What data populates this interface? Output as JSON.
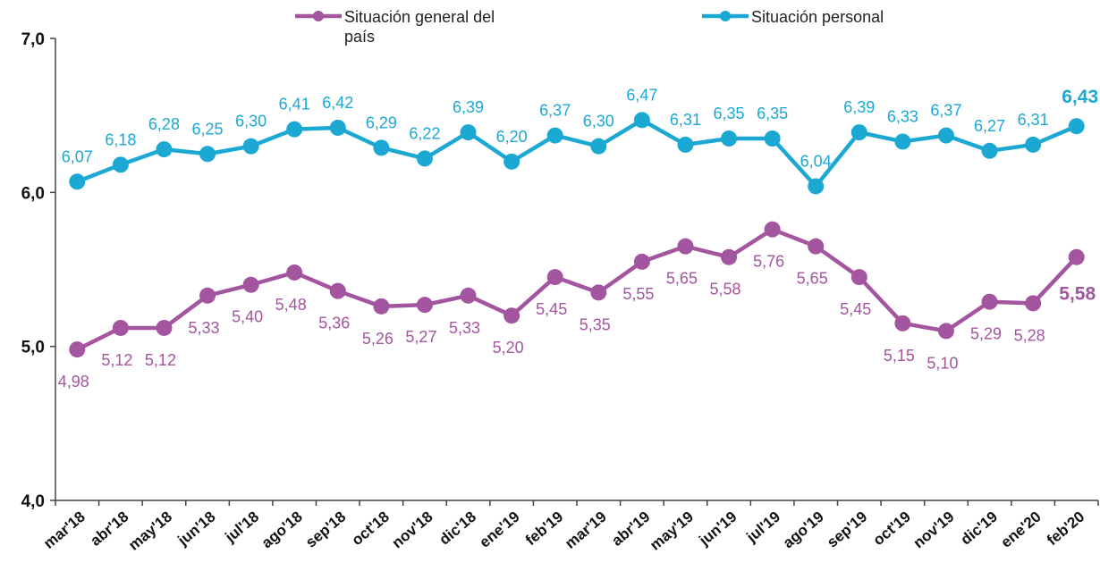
{
  "chart_data": {
    "type": "line",
    "categories": [
      "mar'18",
      "abr'18",
      "may'18",
      "jun'18",
      "jul'18",
      "ago'18",
      "sep'18",
      "oct'18",
      "nov'18",
      "dic'18",
      "ene'19",
      "feb'19",
      "mar'19",
      "abr'19",
      "may'19",
      "jun'19",
      "jul'19",
      "ago'19",
      "sep'19",
      "oct'19",
      "nov'19",
      "dic'19",
      "ene'20",
      "feb'20"
    ],
    "series": [
      {
        "name": "Situación general del país",
        "color": "#a3559f",
        "values": [
          4.98,
          5.12,
          5.12,
          5.33,
          5.4,
          5.48,
          5.36,
          5.26,
          5.27,
          5.33,
          5.2,
          5.45,
          5.35,
          5.55,
          5.65,
          5.58,
          5.76,
          5.65,
          5.45,
          5.15,
          5.1,
          5.29,
          5.28,
          5.58
        ],
        "value_labels": [
          "4,98",
          "5,12",
          "5,12",
          "5,33",
          "5,40",
          "5,48",
          "5,36",
          "5,26",
          "5,27",
          "5,33",
          "5,20",
          "5,45",
          "5,35",
          "5,55",
          "5,65",
          "5,58",
          "5,76",
          "5,65",
          "5,45",
          "5,15",
          "5,10",
          "5,29",
          "5,28",
          "5,58"
        ]
      },
      {
        "name": "Situación personal",
        "color": "#1ba8d3",
        "values": [
          6.07,
          6.18,
          6.28,
          6.25,
          6.3,
          6.41,
          6.42,
          6.29,
          6.22,
          6.39,
          6.2,
          6.37,
          6.3,
          6.47,
          6.31,
          6.35,
          6.35,
          6.04,
          6.39,
          6.33,
          6.37,
          6.27,
          6.31,
          6.43
        ],
        "value_labels": [
          "6,07",
          "6,18",
          "6,28",
          "6,25",
          "6,30",
          "6,41",
          "6,42",
          "6,29",
          "6,22",
          "6,39",
          "6,20",
          "6,37",
          "6,30",
          "6,47",
          "6,31",
          "6,35",
          "6,35",
          "6,04",
          "6,39",
          "6,33",
          "6,37",
          "6,27",
          "6,31",
          "6,43"
        ]
      }
    ],
    "ylim": [
      4.0,
      7.0
    ],
    "yticks": [
      {
        "value": 4.0,
        "label": "4,0"
      },
      {
        "value": 5.0,
        "label": "5,0"
      },
      {
        "value": 6.0,
        "label": "6,0"
      },
      {
        "value": 7.0,
        "label": "7,0"
      }
    ],
    "grid": false
  }
}
